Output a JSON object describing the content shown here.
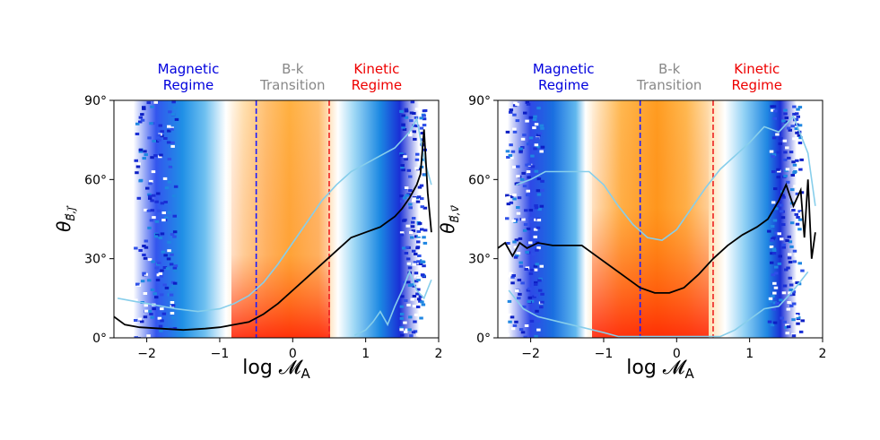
{
  "chart_data": [
    {
      "type": "heatmap",
      "id": "left",
      "xlabel": "log 𝓜",
      "xlabel_sub": "A",
      "ylabel": "θ",
      "ylabel_sub": "B⃗,j⃗",
      "xlim": [
        -2.45,
        2.0
      ],
      "ylim": [
        0,
        90
      ],
      "xticks": [
        {
          "v": -2,
          "label": "−2"
        },
        {
          "v": -1,
          "label": "−1"
        },
        {
          "v": 0,
          "label": "0"
        },
        {
          "v": 1,
          "label": "1"
        },
        {
          "v": 2,
          "label": "2"
        }
      ],
      "yticks": [
        {
          "v": 0,
          "label": "0°"
        },
        {
          "v": 30,
          "label": "30°"
        },
        {
          "v": 60,
          "label": "60°"
        },
        {
          "v": 90,
          "label": "90°"
        }
      ],
      "regimes": [
        {
          "line1": "Magnetic",
          "line2": "Regime",
          "x": -1.43,
          "color": "#0000dd"
        },
        {
          "line1": "B-k",
          "line2": "Transition",
          "x": 0.0,
          "color": "#888888"
        },
        {
          "line1": "Kinetic",
          "line2": "Regime",
          "x": 1.15,
          "color": "#ee0000"
        }
      ],
      "vlines": [
        {
          "x": -0.5,
          "color": "#1a1aff"
        },
        {
          "x": 0.5,
          "color": "#ee2222"
        }
      ],
      "median": {
        "color": "#000000",
        "points": [
          [
            -2.45,
            8
          ],
          [
            -2.3,
            5
          ],
          [
            -2.1,
            4
          ],
          [
            -1.8,
            3.5
          ],
          [
            -1.5,
            3
          ],
          [
            -1.2,
            3.5
          ],
          [
            -1.0,
            4
          ],
          [
            -0.8,
            5
          ],
          [
            -0.6,
            6
          ],
          [
            -0.4,
            9
          ],
          [
            -0.2,
            13
          ],
          [
            0.0,
            18
          ],
          [
            0.2,
            23
          ],
          [
            0.4,
            28
          ],
          [
            0.6,
            33
          ],
          [
            0.8,
            38
          ],
          [
            1.0,
            40
          ],
          [
            1.2,
            42
          ],
          [
            1.3,
            44
          ],
          [
            1.4,
            46
          ],
          [
            1.5,
            49
          ],
          [
            1.6,
            53
          ],
          [
            1.7,
            58
          ],
          [
            1.75,
            62
          ],
          [
            1.8,
            79
          ],
          [
            1.85,
            55
          ],
          [
            1.9,
            40
          ]
        ]
      },
      "upper": {
        "color": "#87ceeb",
        "points": [
          [
            -2.4,
            15
          ],
          [
            -2.2,
            14
          ],
          [
            -2.0,
            13
          ],
          [
            -1.8,
            12
          ],
          [
            -1.6,
            11
          ],
          [
            -1.3,
            10
          ],
          [
            -1.0,
            11
          ],
          [
            -0.8,
            13
          ],
          [
            -0.6,
            16
          ],
          [
            -0.4,
            21
          ],
          [
            -0.2,
            28
          ],
          [
            0.0,
            36
          ],
          [
            0.2,
            44
          ],
          [
            0.4,
            52
          ],
          [
            0.6,
            58
          ],
          [
            0.8,
            63
          ],
          [
            1.0,
            66
          ],
          [
            1.2,
            69
          ],
          [
            1.4,
            72
          ],
          [
            1.6,
            78
          ],
          [
            1.7,
            83
          ],
          [
            1.8,
            68
          ],
          [
            1.9,
            58
          ]
        ]
      },
      "lower": {
        "color": "#87ceeb",
        "points": [
          [
            0.85,
            1
          ],
          [
            1.0,
            3
          ],
          [
            1.1,
            6
          ],
          [
            1.2,
            10
          ],
          [
            1.3,
            5
          ],
          [
            1.4,
            12
          ],
          [
            1.5,
            18
          ],
          [
            1.6,
            25
          ],
          [
            1.7,
            18
          ],
          [
            1.8,
            15
          ],
          [
            1.9,
            22
          ]
        ]
      }
    },
    {
      "type": "heatmap",
      "id": "right",
      "xlabel": "log 𝓜",
      "xlabel_sub": "A",
      "ylabel": "θ",
      "ylabel_sub": "B⃗,v⃗",
      "xlim": [
        -2.45,
        2.0
      ],
      "ylim": [
        0,
        90
      ],
      "xticks": [
        {
          "v": -2,
          "label": "−2"
        },
        {
          "v": -1,
          "label": "−1"
        },
        {
          "v": 0,
          "label": "0"
        },
        {
          "v": 1,
          "label": "1"
        },
        {
          "v": 2,
          "label": "2"
        }
      ],
      "yticks": [
        {
          "v": 0,
          "label": "0°"
        },
        {
          "v": 30,
          "label": "30°"
        },
        {
          "v": 60,
          "label": "60°"
        },
        {
          "v": 90,
          "label": "90°"
        }
      ],
      "regimes": [
        {
          "line1": "Magnetic",
          "line2": "Regime",
          "x": -1.55,
          "color": "#0000dd"
        },
        {
          "line1": "B-k",
          "line2": "Transition",
          "x": -0.1,
          "color": "#888888"
        },
        {
          "line1": "Kinetic",
          "line2": "Regime",
          "x": 1.1,
          "color": "#ee0000"
        }
      ],
      "vlines": [
        {
          "x": -0.5,
          "color": "#1a1aff"
        },
        {
          "x": 0.5,
          "color": "#ee2222"
        }
      ],
      "median": {
        "color": "#000000",
        "points": [
          [
            -2.45,
            34
          ],
          [
            -2.35,
            36
          ],
          [
            -2.25,
            31
          ],
          [
            -2.15,
            36
          ],
          [
            -2.05,
            34
          ],
          [
            -1.9,
            36
          ],
          [
            -1.7,
            35
          ],
          [
            -1.5,
            35
          ],
          [
            -1.3,
            35
          ],
          [
            -1.1,
            31
          ],
          [
            -0.9,
            27
          ],
          [
            -0.7,
            23
          ],
          [
            -0.5,
            19
          ],
          [
            -0.3,
            17
          ],
          [
            -0.1,
            17
          ],
          [
            0.1,
            19
          ],
          [
            0.3,
            24
          ],
          [
            0.5,
            30
          ],
          [
            0.7,
            35
          ],
          [
            0.9,
            39
          ],
          [
            1.1,
            42
          ],
          [
            1.25,
            45
          ],
          [
            1.4,
            52
          ],
          [
            1.5,
            58
          ],
          [
            1.6,
            50
          ],
          [
            1.7,
            56
          ],
          [
            1.75,
            38
          ],
          [
            1.8,
            60
          ],
          [
            1.85,
            30
          ],
          [
            1.9,
            40
          ]
        ]
      },
      "upper": {
        "color": "#87ceeb",
        "points": [
          [
            -2.2,
            58
          ],
          [
            -2.0,
            60
          ],
          [
            -1.8,
            63
          ],
          [
            -1.5,
            63
          ],
          [
            -1.2,
            63
          ],
          [
            -1.0,
            58
          ],
          [
            -0.8,
            50
          ],
          [
            -0.6,
            43
          ],
          [
            -0.4,
            38
          ],
          [
            -0.2,
            37
          ],
          [
            0.0,
            41
          ],
          [
            0.2,
            49
          ],
          [
            0.4,
            57
          ],
          [
            0.6,
            64
          ],
          [
            0.8,
            69
          ],
          [
            1.0,
            74
          ],
          [
            1.2,
            80
          ],
          [
            1.4,
            78
          ],
          [
            1.6,
            84
          ],
          [
            1.8,
            70
          ],
          [
            1.9,
            50
          ]
        ]
      },
      "lower": {
        "color": "#87ceeb",
        "points": [
          [
            -2.3,
            18
          ],
          [
            -2.1,
            11
          ],
          [
            -1.9,
            8
          ],
          [
            -1.6,
            6
          ],
          [
            -1.3,
            4
          ],
          [
            -1.0,
            2
          ],
          [
            -0.8,
            0.5
          ],
          [
            0.6,
            0.5
          ],
          [
            0.8,
            3
          ],
          [
            1.0,
            7
          ],
          [
            1.2,
            11
          ],
          [
            1.4,
            12
          ],
          [
            1.6,
            18
          ],
          [
            1.8,
            25
          ]
        ]
      }
    }
  ]
}
